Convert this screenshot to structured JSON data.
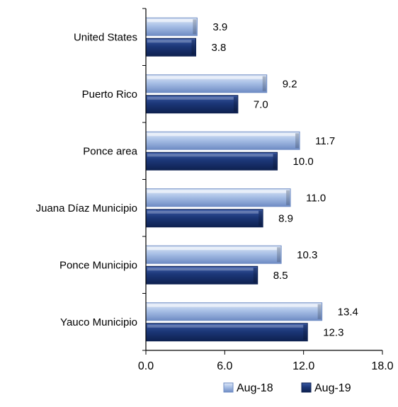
{
  "chart_data": {
    "type": "bar",
    "orientation": "horizontal",
    "categories": [
      "United States",
      "Puerto Rico",
      "Ponce area",
      "Juana Díaz Municipio",
      "Ponce Municipio",
      "Yauco Municipio"
    ],
    "series": [
      {
        "name": "Aug-18",
        "values": [
          3.9,
          9.2,
          11.7,
          11.0,
          10.3,
          13.4
        ],
        "labels": [
          "3.9",
          "9.2",
          "11.7",
          "11.0",
          "10.3",
          "13.4"
        ],
        "color": "#8ea9db"
      },
      {
        "name": "Aug-19",
        "values": [
          3.8,
          7.0,
          10.0,
          8.9,
          8.5,
          12.3
        ],
        "labels": [
          "3.8",
          "7.0",
          "10.0",
          "8.9",
          "8.5",
          "12.3"
        ],
        "color": "#1f3a7a"
      }
    ],
    "xlim": [
      0,
      18
    ],
    "x_ticks": [
      "0.0",
      "6.0",
      "12.0",
      "18.0"
    ],
    "x_tick_values": [
      0,
      6,
      12,
      18
    ],
    "grid": false,
    "legend_position": "bottom"
  }
}
